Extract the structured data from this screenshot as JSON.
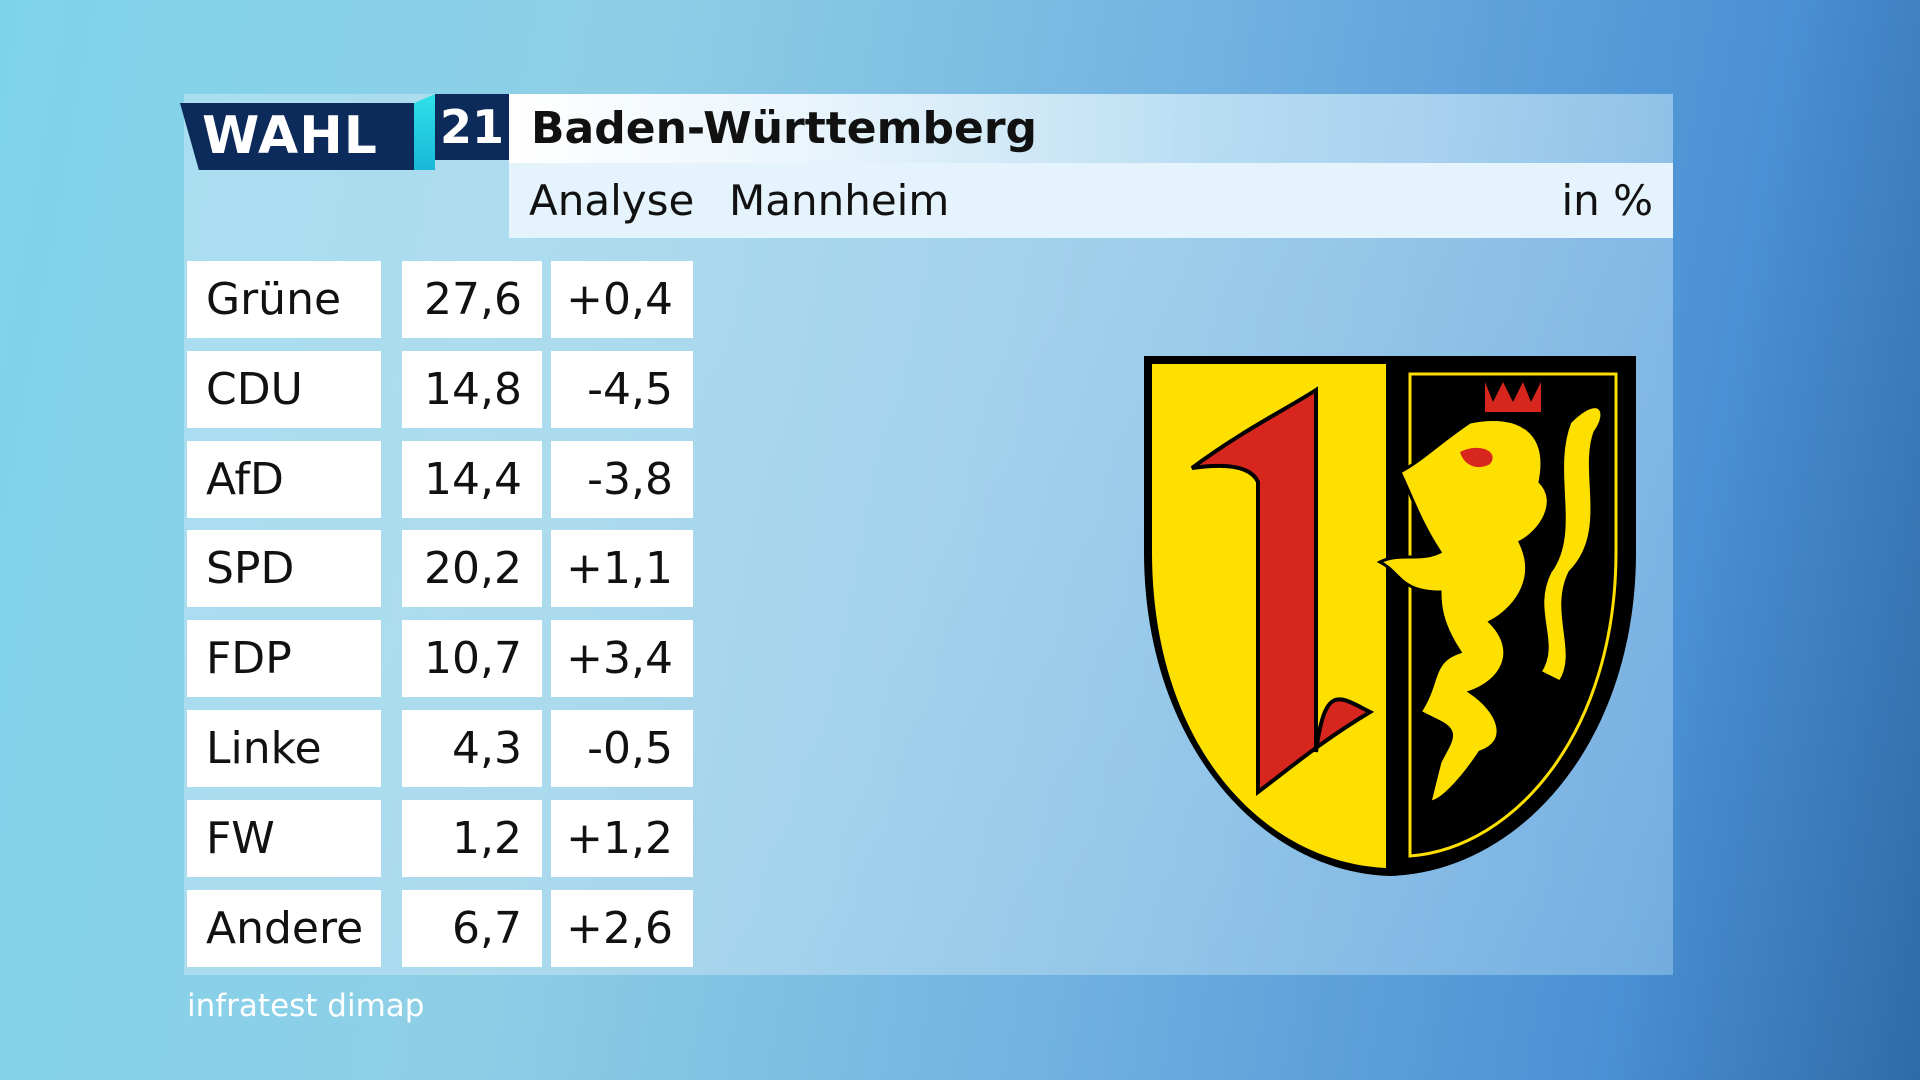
{
  "header": {
    "logo_word": "WAHL",
    "logo_number": "21",
    "title": "Baden-Württemberg",
    "subtitle": "Analyse",
    "region": "Mannheim",
    "unit": "in %"
  },
  "table": {
    "rows": [
      [
        "Grüne",
        "27,6",
        "+0,4"
      ],
      [
        "CDU",
        "14,8",
        "-4,5"
      ],
      [
        "AfD",
        "14,4",
        "-3,8"
      ],
      [
        "SPD",
        "20,2",
        "+1,1"
      ],
      [
        "FDP",
        "10,7",
        "+3,4"
      ],
      [
        "Linke",
        "4,3",
        "-0,5"
      ],
      [
        "FW",
        "1,2",
        "+1,2"
      ],
      [
        "Andere",
        "6,7",
        "+2,6"
      ]
    ]
  },
  "source": "infratest dimap"
}
